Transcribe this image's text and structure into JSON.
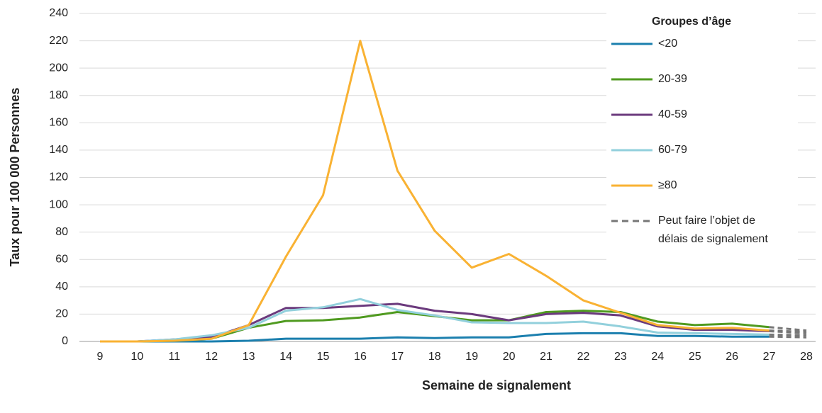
{
  "chart_data": {
    "type": "line",
    "xlabel": "Semaine de signalement",
    "ylabel": "Taux pour 100 000 Personnes",
    "legend_title": "Groupes d’âge",
    "categories": [
      "9",
      "10",
      "11",
      "12",
      "13",
      "14",
      "15",
      "16",
      "17",
      "18",
      "19",
      "20",
      "21",
      "22",
      "23",
      "24",
      "25",
      "26",
      "27",
      "28"
    ],
    "series": [
      {
        "name": "<20",
        "color": "#1b7fae",
        "values": [
          0,
          0,
          0,
          0,
          0.5,
          2,
          2,
          2,
          3,
          2.5,
          3,
          3,
          5.5,
          6,
          6,
          4,
          4,
          3.5,
          3.5,
          3
        ]
      },
      {
        "name": "20-39",
        "color": "#4f9a1f",
        "values": [
          0,
          0,
          0.5,
          2,
          10,
          15,
          15.5,
          17.5,
          21.5,
          18.5,
          15.5,
          15.5,
          21.5,
          22.5,
          21.5,
          14.5,
          12,
          13,
          10.5,
          8
        ]
      },
      {
        "name": "40-59",
        "color": "#6b3a7d",
        "values": [
          0,
          0,
          1.5,
          3,
          12,
          24.5,
          24.5,
          26,
          27.5,
          22.5,
          20,
          15.5,
          20,
          21,
          19,
          11,
          8.5,
          8.5,
          7.5,
          6
        ]
      },
      {
        "name": "60-79",
        "color": "#92d0dc",
        "values": [
          0,
          0,
          1.5,
          4.5,
          10,
          22.5,
          25,
          31,
          23,
          19,
          14,
          13.5,
          13.5,
          14.5,
          11,
          6.5,
          6,
          5.5,
          5,
          4.5
        ]
      },
      {
        "name": "≥80",
        "color": "#f9b233",
        "values": [
          0,
          0,
          0.5,
          2,
          12,
          62,
          107,
          220,
          125,
          81,
          54,
          64,
          48,
          30,
          21,
          12,
          9.5,
          10,
          8,
          7
        ]
      }
    ],
    "dashed_from_category": "27",
    "dashed_color": "#777777",
    "dashed_legend": [
      "Peut faire l’objet de",
      "délais de signalement"
    ],
    "ylim": [
      0,
      240
    ],
    "yticks": [
      0,
      20,
      40,
      60,
      80,
      100,
      120,
      140,
      160,
      180,
      200,
      220,
      240
    ],
    "grid": true
  }
}
